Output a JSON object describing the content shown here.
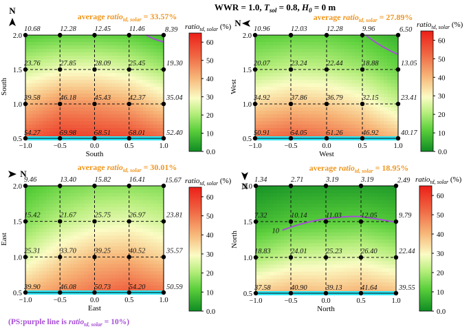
{
  "title_prefix": "WWR = 1.0, ",
  "title_mid": " = 0.8, ",
  "title_suffix": " = 0 m",
  "note": "(PS:purple line is ratio_td, solar = 10%)",
  "colorbar_label": "ratio_td, solar (%)",
  "colorbar_ticks": [
    "0.0",
    "10",
    "20",
    "30",
    "40",
    "50",
    "60"
  ],
  "colors": {
    "low": "#0f8c23",
    "mid": "#fbfcc4",
    "high": "#ec1f18",
    "cyan": "#2ee6f5",
    "purple": "#a64fd6",
    "avg": "#f0961e"
  },
  "chart_data": [
    {
      "type": "heatmap",
      "orientation": "South",
      "north_label": "N",
      "average": "average ratio_td, solar = 33.57%",
      "xlabel": "South",
      "ylabel": "South",
      "x": [
        -1.0,
        -0.5,
        0.0,
        0.5,
        1.0
      ],
      "y": [
        0.5,
        1.0,
        1.5,
        2.0
      ],
      "xticks": [
        "−1.0",
        "−0.5",
        "0.0",
        "0.5",
        "1.0"
      ],
      "yticks": [
        "0.5",
        "1.0",
        "1.5",
        "2.0"
      ],
      "values": [
        [
          "54.27",
          "59.98",
          "58.51",
          "58.01",
          "52.40"
        ],
        [
          "39.58",
          "46.18",
          "45.43",
          "42.37",
          "35.04"
        ],
        [
          "23.76",
          "27.85",
          "28.09",
          "25.45",
          "19.30"
        ],
        [
          "10.68",
          "12.28",
          "12.45",
          "11.46",
          "8.39"
        ]
      ],
      "colorbar_range": [
        0,
        65
      ]
    },
    {
      "type": "heatmap",
      "orientation": "West",
      "north_label": "N",
      "average": "average ratio_td, solar = 27.89%",
      "xlabel": "West",
      "ylabel": "West",
      "x": [
        -1.0,
        -0.5,
        0.0,
        0.5,
        1.0
      ],
      "y": [
        0.5,
        1.0,
        1.5,
        2.0
      ],
      "xticks": [
        "−1.0",
        "−0.5",
        "0.0",
        "0.5",
        "1.0"
      ],
      "yticks": [
        "0.5",
        "1.0",
        "1.5",
        "2.0"
      ],
      "values": [
        [
          "50.91",
          "54.05",
          "51.26",
          "46.92",
          "40.17"
        ],
        [
          "34.92",
          "37.86",
          "36.79",
          "32.15",
          "23.41"
        ],
        [
          "20.07",
          "23.24",
          "22.44",
          "18.88",
          "13.05"
        ],
        [
          "10.96",
          "12.03",
          "12.28",
          "9.96",
          "6.50"
        ]
      ],
      "colorbar_range": [
        0,
        65
      ]
    },
    {
      "type": "heatmap",
      "orientation": "East",
      "north_label": "N",
      "average": "average ratio_td, solar = 30.01%",
      "xlabel": "East",
      "ylabel": "East",
      "x": [
        -1.0,
        -0.5,
        0.0,
        0.5,
        1.0
      ],
      "y": [
        0.5,
        1.0,
        1.5,
        2.0
      ],
      "xticks": [
        "−1.0",
        "−0.5",
        "0.0",
        "0.5",
        "1.0"
      ],
      "yticks": [
        "0.5",
        "1.0",
        "1.5",
        "2.0"
      ],
      "values": [
        [
          "39.90",
          "46.08",
          "50.73",
          "54.20",
          "50.59"
        ],
        [
          "25.31",
          "33.70",
          "39.25",
          "40.52",
          "35.57"
        ],
        [
          "15.42",
          "21.67",
          "25.75",
          "26.97",
          "23.81"
        ],
        [
          "9.46",
          "13.40",
          "15.82",
          "16.41",
          "15.67"
        ]
      ],
      "colorbar_range": [
        0,
        65
      ]
    },
    {
      "type": "heatmap",
      "orientation": "North",
      "north_label": "N",
      "average": "average ratio_td, solar = 18.95%",
      "xlabel": "North",
      "ylabel": "North",
      "x": [
        -1.0,
        -0.5,
        0.0,
        0.5,
        1.0
      ],
      "y": [
        0.5,
        1.0,
        1.5,
        2.0
      ],
      "xticks": [
        "−1.0",
        "−0.5",
        "0.0",
        "0.5",
        "1.0"
      ],
      "yticks": [
        "0.5",
        "1.0",
        "1.5",
        "2.0"
      ],
      "values": [
        [
          "37.58",
          "40.90",
          "39.13",
          "41.64",
          "39.55"
        ],
        [
          "18.83",
          "24.01",
          "25.23",
          "26.40",
          "22.44"
        ],
        [
          "7.32",
          "10.14",
          "11.03",
          "12.05",
          "9.79"
        ],
        [
          "1.34",
          "2.71",
          "3.19",
          "3.19",
          "2.49"
        ]
      ],
      "contour_label": "10",
      "colorbar_range": [
        0,
        65
      ]
    }
  ]
}
